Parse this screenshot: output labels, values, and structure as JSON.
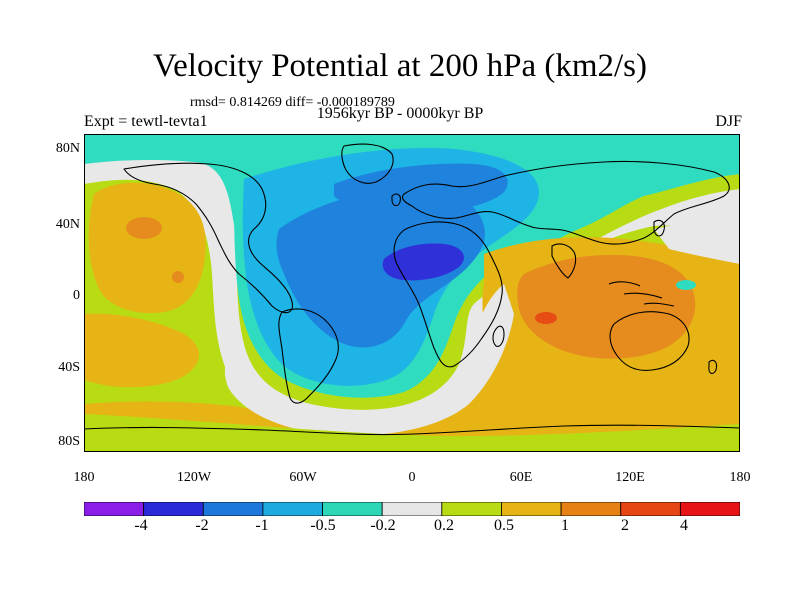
{
  "title": "Velocity Potential at 200 hPa (km2/s)",
  "stats": "rmsd= 0.814269 diff= -0.000189789",
  "period": "1956kyr BP - 0000kyr BP",
  "experiment": "Expt = tewtl-tevta1",
  "season": "DJF",
  "map_data": {
    "lat_labels": [
      "80N",
      "40N",
      "0",
      "40S",
      "80S"
    ],
    "lon_labels": [
      "180",
      "120W",
      "60W",
      "0",
      "60E",
      "120E",
      "180"
    ],
    "colorbar_labels": [
      "-4",
      "-2",
      "-1",
      "-0.5",
      "-0.2",
      "0.2",
      "0.5",
      "1",
      "2",
      "4"
    ],
    "colorbar_colors": [
      "#8a1ee6",
      "#2a2ad8",
      "#1e78dc",
      "#1eaadc",
      "#2ed6b8",
      "#e6e6e6",
      "#b8dc14",
      "#e6b414",
      "#e68214",
      "#e64614",
      "#e61414"
    ],
    "colors": {
      "c_lt_m4": "#8a1ee6",
      "c_m4_m2": "#3030d8",
      "c_m2_m1": "#1f82dc",
      "c_m1_m05": "#1eb4e6",
      "c_m05_m02": "#30dcc0",
      "c_neutral": "#e8e8e8",
      "c_02_05": "#b8dc14",
      "c_05_1": "#e6b414",
      "c_1_2": "#e68c1e",
      "c_2_4": "#e64c14",
      "c_gt_4": "#e61414",
      "coast": "#000000"
    }
  }
}
